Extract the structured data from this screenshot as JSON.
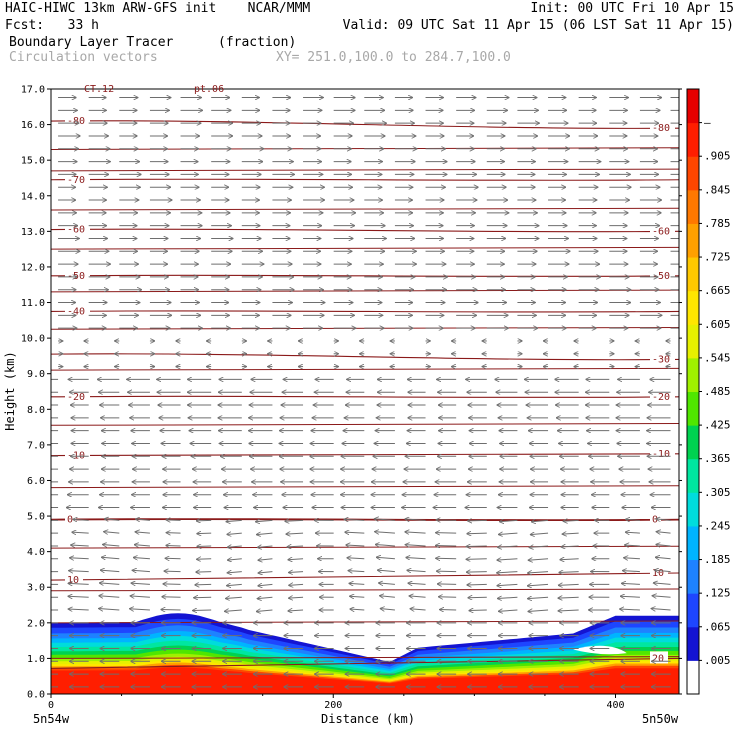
{
  "header": {
    "title_left": "HAIC-HIWC 13km ARW-GFS init    NCAR/MMM",
    "init": "Init: 00 UTC Fri 10 Apr 15",
    "fcst": "Fcst:   33 h",
    "valid": "Valid: 09 UTC Sat 11 Apr 15 (06 LST Sat 11 Apr 15)",
    "field": "Boundary Layer Tracer",
    "units": "(fraction)",
    "vectors": "Circulation vectors",
    "xy": "XY= 251.0,100.0 to 284.7,100.0"
  },
  "overlay_labels": {
    "topleft_a": "CT.12",
    "topleft_b": "pt.06"
  },
  "chart_data": {
    "type": "heatmap",
    "xlabel": "Distance (km)",
    "ylabel": "Height (km)",
    "xlim": [
      0,
      445
    ],
    "ylim": [
      0,
      17
    ],
    "x_ticks": [
      "0",
      "200",
      "400"
    ],
    "x_tick_values": [
      0,
      200,
      400
    ],
    "x_end_labels": {
      "left": "5n54w",
      "right": "5n50w"
    },
    "y_ticks": [
      "0.0",
      "1.0",
      "2.0",
      "3.0",
      "4.0",
      "5.0",
      "6.0",
      "7.0",
      "8.0",
      "9.0",
      "10.0",
      "11.0",
      "12.0",
      "13.0",
      "14.0",
      "15.0",
      "16.0",
      "17.0"
    ],
    "colorbar": {
      "labels": [
        ".005",
        ".065",
        ".125",
        ".185",
        ".245",
        ".305",
        ".365",
        ".425",
        ".485",
        ".545",
        ".605",
        ".665",
        ".725",
        ".785",
        ".845",
        ".905",
        "–"
      ],
      "colors": [
        "#ffffff",
        "#1414d2",
        "#1e46ff",
        "#1e82ff",
        "#00b4ff",
        "#00dcdc",
        "#00e6a0",
        "#00d250",
        "#50e600",
        "#a0f000",
        "#e6f000",
        "#ffe600",
        "#ffc800",
        "#ffa000",
        "#ff7800",
        "#ff4600",
        "#ff1e00",
        "#e60000"
      ]
    },
    "temperature_contours": [
      {
        "value": 20,
        "z_left": 0.72,
        "z_right": 1.0,
        "label": "20",
        "label_side": "right"
      },
      {
        "value": 10,
        "z_left": 3.2,
        "z_right": 3.4,
        "label": "10",
        "label_side": "both"
      },
      {
        "value": 0,
        "z_left": 4.9,
        "z_right": 4.9,
        "label": "0",
        "label_side": "both"
      },
      {
        "value": -10,
        "z_left": 6.7,
        "z_right": 6.75,
        "label": "-10",
        "label_side": "both"
      },
      {
        "value": -20,
        "z_left": 8.35,
        "z_right": 8.35,
        "label": "-20",
        "label_side": "both"
      },
      {
        "value": -30,
        "z_left": 9.55,
        "z_right": 9.4,
        "label": "-30",
        "label_side": "right"
      },
      {
        "value": -40,
        "z_left": 10.75,
        "z_right": 10.75,
        "label": "-40",
        "label_side": "left"
      },
      {
        "value": -50,
        "z_left": 11.75,
        "z_right": 11.75,
        "label": "-50",
        "label_side": "both"
      },
      {
        "value": -60,
        "z_left": 13.05,
        "z_right": 13.0,
        "label": "-60",
        "label_side": "both"
      },
      {
        "value": -70,
        "z_left": 14.45,
        "z_right": 14.45,
        "label": "-70",
        "label_side": "left"
      },
      {
        "value": -80,
        "z_left": 16.1,
        "z_right": 15.9,
        "label": "-80",
        "label_side": "both"
      }
    ],
    "extra_contour_heights": [
      1.0,
      2.0,
      2.9,
      4.1,
      5.8,
      7.55,
      9.1,
      10.25,
      11.3,
      12.5,
      13.6,
      14.7,
      15.3
    ]
  }
}
